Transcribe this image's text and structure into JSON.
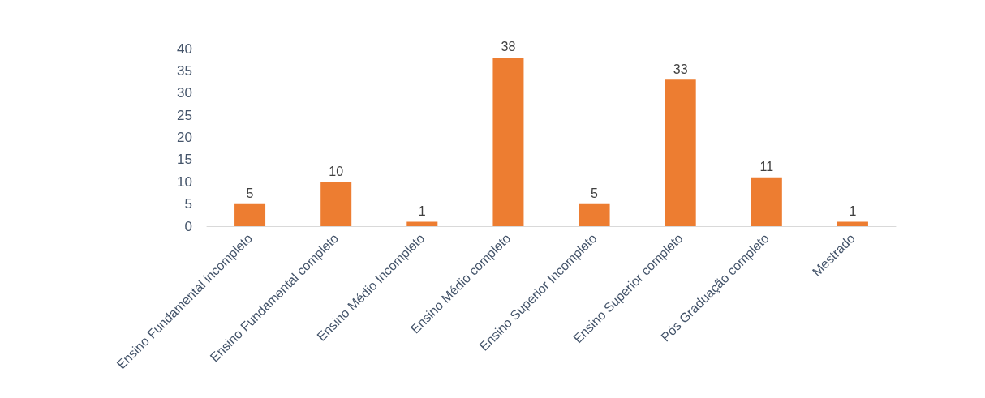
{
  "chart_data": {
    "type": "bar",
    "categories": [
      "Ensino Fundamental incompleto",
      "Ensino Fundamental completo",
      "Ensino Médio Incompleto",
      "Ensino Médio completo",
      "Ensino Superior Incompleto",
      "Ensino Superior completo",
      "Pós Graduação completo",
      "Mestrado"
    ],
    "values": [
      5,
      10,
      1,
      38,
      5,
      33,
      11,
      1
    ],
    "color": "#ed7d31",
    "ylim": [
      0,
      40
    ],
    "yticks": [
      0,
      5,
      10,
      15,
      20,
      25,
      30,
      35,
      40
    ],
    "grid": false,
    "data_labels": true
  }
}
